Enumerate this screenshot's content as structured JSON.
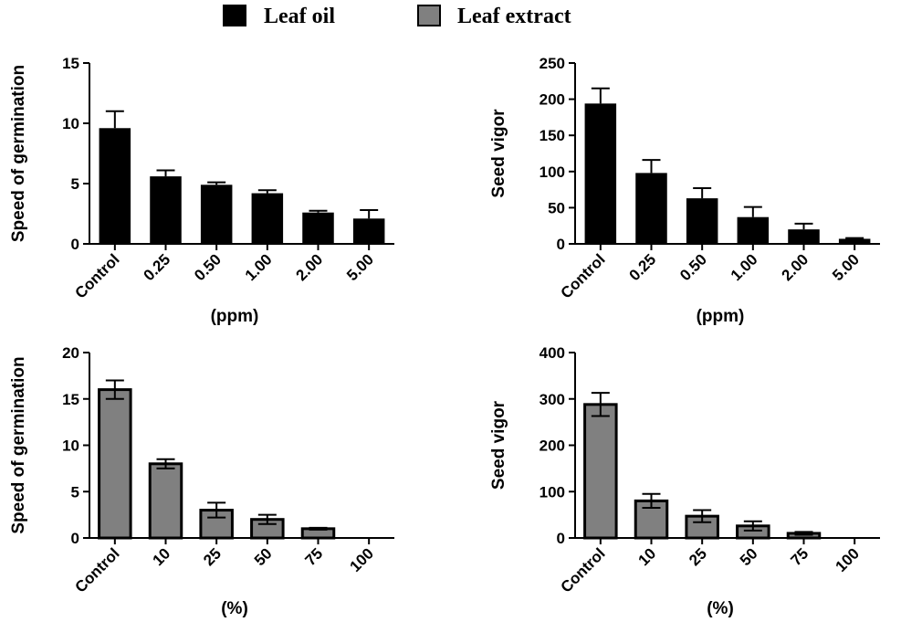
{
  "legend": [
    {
      "label": "Leaf oil",
      "color": "#000000"
    },
    {
      "label": "Leaf extract",
      "color": "#808080"
    }
  ],
  "chart_data": [
    {
      "type": "bar",
      "series_name": "Leaf oil",
      "bar_color": "#000000",
      "categories": [
        "Control",
        "0.25",
        "0.50",
        "1.00",
        "2.00",
        "5.00"
      ],
      "values": [
        9.6,
        5.6,
        4.9,
        4.2,
        2.6,
        2.1
      ],
      "errors": [
        1.4,
        0.5,
        0.2,
        0.25,
        0.15,
        0.7
      ],
      "xlabel": "(ppm)",
      "ylabel": "Speed of germination",
      "ylim": [
        0,
        15
      ],
      "yticks": [
        0,
        5,
        10,
        15
      ]
    },
    {
      "type": "bar",
      "series_name": "Leaf oil",
      "bar_color": "#000000",
      "categories": [
        "Control",
        "0.25",
        "0.50",
        "1.00",
        "2.00",
        "5.00"
      ],
      "values": [
        194,
        98,
        63,
        37,
        20,
        7
      ],
      "errors": [
        21,
        18,
        14,
        14,
        8,
        1
      ],
      "xlabel": "(ppm)",
      "ylabel": "Seed vigor",
      "ylim": [
        0,
        250
      ],
      "yticks": [
        0,
        50,
        100,
        150,
        200,
        250
      ]
    },
    {
      "type": "bar",
      "series_name": "Leaf extract",
      "bar_color": "#808080",
      "categories": [
        "Control",
        "10",
        "25",
        "50",
        "75",
        "100"
      ],
      "values": [
        16.0,
        8.0,
        3.0,
        2.0,
        1.0,
        0
      ],
      "errors": [
        1.0,
        0.5,
        0.8,
        0.5,
        0.1,
        0
      ],
      "xlabel": "(%)",
      "ylabel": "Speed of germination",
      "ylim": [
        0,
        20
      ],
      "yticks": [
        0,
        5,
        10,
        15,
        20
      ]
    },
    {
      "type": "bar",
      "series_name": "Leaf extract",
      "bar_color": "#808080",
      "categories": [
        "Control",
        "10",
        "25",
        "50",
        "75",
        "100"
      ],
      "values": [
        288,
        80,
        47,
        26,
        10,
        0
      ],
      "errors": [
        25,
        15,
        13,
        10,
        3,
        0
      ],
      "xlabel": "(%)",
      "ylabel": "Seed vigor",
      "ylim": [
        0,
        400
      ],
      "yticks": [
        0,
        100,
        200,
        300,
        400
      ]
    }
  ]
}
